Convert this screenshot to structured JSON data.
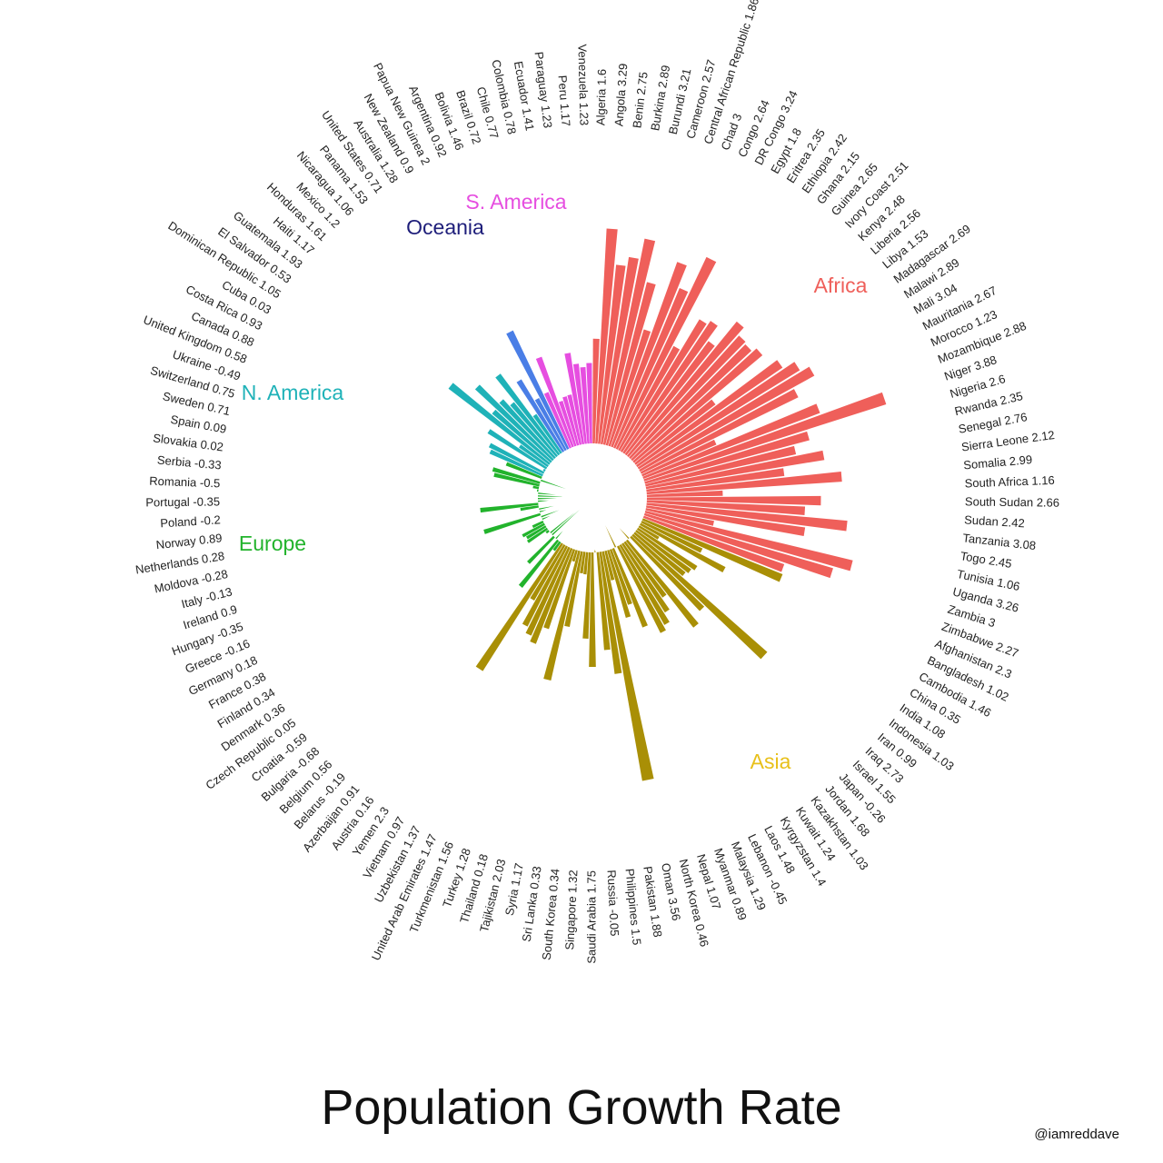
{
  "title": "Population Growth Rate",
  "credit": "@iamreddave",
  "colors": {
    "Africa": "#ef5f5a",
    "Asia": "#a98f06",
    "Europe": "#22b32c",
    "N. America": "#1fb2b8",
    "Oceania": "#4a7ee6",
    "S. America": "#e64ee0",
    "Oceania label": "#1e1e7a"
  },
  "chart_data": {
    "type": "bar",
    "subtype": "circular",
    "group_labels": [
      "Africa",
      "Asia",
      "Europe",
      "N. America",
      "Oceania",
      "S. America"
    ],
    "series": [
      {
        "name": "Africa",
        "items": [
          {
            "label": "Algeria 1.6",
            "value": 1.6
          },
          {
            "label": "Angola 3.29",
            "value": 3.29
          },
          {
            "label": "Benin 2.75",
            "value": 2.75
          },
          {
            "label": "Burkina 2.89",
            "value": 2.89
          },
          {
            "label": "Burundi 3.21",
            "value": 3.21
          },
          {
            "label": "Cameroon 2.57",
            "value": 2.57
          },
          {
            "label": "Central African Republic 1.86",
            "value": 1.86
          },
          {
            "label": "Chad 3",
            "value": 3
          },
          {
            "label": "Congo 2.64",
            "value": 2.64
          },
          {
            "label": "DR Congo 3.24",
            "value": 3.24
          },
          {
            "label": "Egypt 1.8",
            "value": 1.8
          },
          {
            "label": "Eritrea 2.35",
            "value": 2.35
          },
          {
            "label": "Ethiopia 2.42",
            "value": 2.42
          },
          {
            "label": "Ghana 2.15",
            "value": 2.15
          },
          {
            "label": "Guinea 2.65",
            "value": 2.65
          },
          {
            "label": "Ivory Coast 2.51",
            "value": 2.51
          },
          {
            "label": "Kenya 2.48",
            "value": 2.48
          },
          {
            "label": "Liberia 2.56",
            "value": 2.56
          },
          {
            "label": "Libya 1.53",
            "value": 1.53
          },
          {
            "label": "Madagascar 2.69",
            "value": 2.69
          },
          {
            "label": "Malawi 2.89",
            "value": 2.89
          },
          {
            "label": "Mali 3.04",
            "value": 3.04
          },
          {
            "label": "Mauritania 2.67",
            "value": 2.67
          },
          {
            "label": "Morocco 1.23",
            "value": 1.23
          },
          {
            "label": "Mozambique 2.88",
            "value": 2.88
          },
          {
            "label": "Niger 3.88",
            "value": 3.88
          },
          {
            "label": "Nigeria 2.6",
            "value": 2.6
          },
          {
            "label": "Rwanda 2.35",
            "value": 2.35
          },
          {
            "label": "Senegal 2.76",
            "value": 2.76
          },
          {
            "label": "Sierra Leone 2.12",
            "value": 2.12
          },
          {
            "label": "Somalia 2.99",
            "value": 2.99
          },
          {
            "label": "South Africa 1.16",
            "value": 1.16
          },
          {
            "label": "South Sudan 2.66",
            "value": 2.66
          },
          {
            "label": "Sudan 2.42",
            "value": 2.42
          },
          {
            "label": "Tanzania 3.08",
            "value": 3.08
          },
          {
            "label": "Togo 2.45",
            "value": 2.45
          },
          {
            "label": "Tunisia 1.06",
            "value": 1.06
          },
          {
            "label": "Uganda 3.26",
            "value": 3.26
          },
          {
            "label": "Zambia 3",
            "value": 3
          },
          {
            "label": "Zimbabwe 2.27",
            "value": 2.27
          }
        ]
      },
      {
        "name": "Asia",
        "items": [
          {
            "label": "Afghanistan 2.3",
            "value": 2.3
          },
          {
            "label": "Bangladesh 1.02",
            "value": 1.02
          },
          {
            "label": "Cambodia 1.46",
            "value": 1.46
          },
          {
            "label": "China 0.35",
            "value": 0.35
          },
          {
            "label": "India 1.08",
            "value": 1.08
          },
          {
            "label": "Indonesia 1.03",
            "value": 1.03
          },
          {
            "label": "Iran 0.99",
            "value": 0.99
          },
          {
            "label": "Iraq 2.73",
            "value": 2.73
          },
          {
            "label": "Israel 1.55",
            "value": 1.55
          },
          {
            "label": "Japan -0.26",
            "value": -0.26
          },
          {
            "label": "Jordan 1.68",
            "value": 1.68
          },
          {
            "label": "Kazakhstan 1.03",
            "value": 1.03
          },
          {
            "label": "Kuwait 1.24",
            "value": 1.24
          },
          {
            "label": "Kyrgyzstan 1.4",
            "value": 1.4
          },
          {
            "label": "Laos 1.48",
            "value": 1.48
          },
          {
            "label": "Lebanon -0.45",
            "value": -0.45
          },
          {
            "label": "Malaysia 1.29",
            "value": 1.29
          },
          {
            "label": "Myanmar 0.89",
            "value": 0.89
          },
          {
            "label": "Nepal 1.07",
            "value": 1.07
          },
          {
            "label": "North Korea 0.46",
            "value": 0.46
          },
          {
            "label": "Oman 3.56",
            "value": 3.56
          },
          {
            "label": "Pakistan 1.88",
            "value": 1.88
          },
          {
            "label": "Philippines 1.5",
            "value": 1.5
          },
          {
            "label": "Russia -0.05",
            "value": -0.05
          },
          {
            "label": "Saudi Arabia 1.75",
            "value": 1.75
          },
          {
            "label": "Singapore 1.32",
            "value": 1.32
          },
          {
            "label": "South Korea 0.34",
            "value": 0.34
          },
          {
            "label": "Sri Lanka 0.33",
            "value": 0.33
          },
          {
            "label": "Syria 1.17",
            "value": 1.17
          },
          {
            "label": "Tajikistan 2.03",
            "value": 2.03
          },
          {
            "label": "Thailand 0.18",
            "value": 0.18
          },
          {
            "label": "Turkey 1.28",
            "value": 1.28
          },
          {
            "label": "Turkmenistan 1.56",
            "value": 1.56
          },
          {
            "label": "United Arab Emirates 1.47",
            "value": 1.47
          },
          {
            "label": "Uzbekistan 1.37",
            "value": 1.37
          },
          {
            "label": "Vietnam 0.97",
            "value": 0.97
          },
          {
            "label": "Yemen 2.3",
            "value": 2.3
          }
        ]
      },
      {
        "name": "Europe",
        "items": [
          {
            "label": "Austria 0.16",
            "value": 0.16
          },
          {
            "label": "Azerbaijan 0.91",
            "value": 0.91
          },
          {
            "label": "Belarus -0.19",
            "value": -0.19
          },
          {
            "label": "Belgium 0.56",
            "value": 0.56
          },
          {
            "label": "Bulgaria -0.68",
            "value": -0.68
          },
          {
            "label": "Croatia -0.59",
            "value": -0.59
          },
          {
            "label": "Czech Republic 0.05",
            "value": 0.05
          },
          {
            "label": "Denmark 0.36",
            "value": 0.36
          },
          {
            "label": "Finland 0.34",
            "value": 0.34
          },
          {
            "label": "France 0.38",
            "value": 0.38
          },
          {
            "label": "Germany 0.18",
            "value": 0.18
          },
          {
            "label": "Greece -0.16",
            "value": -0.16
          },
          {
            "label": "Hungary -0.35",
            "value": -0.35
          },
          {
            "label": "Ireland 0.9",
            "value": 0.9
          },
          {
            "label": "Italy -0.13",
            "value": -0.13
          },
          {
            "label": "Moldova -0.28",
            "value": -0.28
          },
          {
            "label": "Netherlands 0.28",
            "value": 0.28
          },
          {
            "label": "Norway 0.89",
            "value": 0.89
          },
          {
            "label": "Poland -0.2",
            "value": -0.2
          },
          {
            "label": "Portugal -0.35",
            "value": -0.35
          },
          {
            "label": "Romania -0.5",
            "value": -0.5
          },
          {
            "label": "Serbia -0.33",
            "value": -0.33
          },
          {
            "label": "Slovakia 0.02",
            "value": 0.02
          },
          {
            "label": "Spain 0.09",
            "value": 0.09
          },
          {
            "label": "Sweden 0.71",
            "value": 0.71
          },
          {
            "label": "Switzerland 0.75",
            "value": 0.75
          },
          {
            "label": "Ukraine -0.49",
            "value": -0.49
          },
          {
            "label": "United Kingdom 0.58",
            "value": 0.58
          }
        ]
      },
      {
        "name": "N. America",
        "items": [
          {
            "label": "Canada 0.88",
            "value": 0.88
          },
          {
            "label": "Costa Rica 0.93",
            "value": 0.93
          },
          {
            "label": "Cuba 0.03",
            "value": 0.03
          },
          {
            "label": "Dominican Republic 1.05",
            "value": 1.05
          },
          {
            "label": "El Salvador 0.53",
            "value": 0.53
          },
          {
            "label": "Guatemala 1.93",
            "value": 1.93
          },
          {
            "label": "Haiti 1.17",
            "value": 1.17
          },
          {
            "label": "Honduras 1.61",
            "value": 1.61
          },
          {
            "label": "Mexico 1.2",
            "value": 1.2
          },
          {
            "label": "Nicaragua 1.06",
            "value": 1.06
          },
          {
            "label": "Panama 1.53",
            "value": 1.53
          },
          {
            "label": "United States 0.71",
            "value": 0.71
          }
        ]
      },
      {
        "name": "Oceania",
        "items": [
          {
            "label": "Australia 1.28",
            "value": 1.28
          },
          {
            "label": "New Zealand 0.9",
            "value": 0.9
          },
          {
            "label": "Papua New Guinea 2",
            "value": 2
          }
        ]
      },
      {
        "name": "S. America",
        "items": [
          {
            "label": "Argentina 0.92",
            "value": 0.92
          },
          {
            "label": "Bolivia 1.46",
            "value": 1.46
          },
          {
            "label": "Brazil 0.72",
            "value": 0.72
          },
          {
            "label": "Chile 0.77",
            "value": 0.77
          },
          {
            "label": "Colombia 0.78",
            "value": 0.78
          },
          {
            "label": "Ecuador 1.41",
            "value": 1.41
          },
          {
            "label": "Paraguay 1.23",
            "value": 1.23
          },
          {
            "label": "Peru 1.17",
            "value": 1.17
          },
          {
            "label": "Venezuela 1.23",
            "value": 1.23
          }
        ]
      }
    ]
  }
}
